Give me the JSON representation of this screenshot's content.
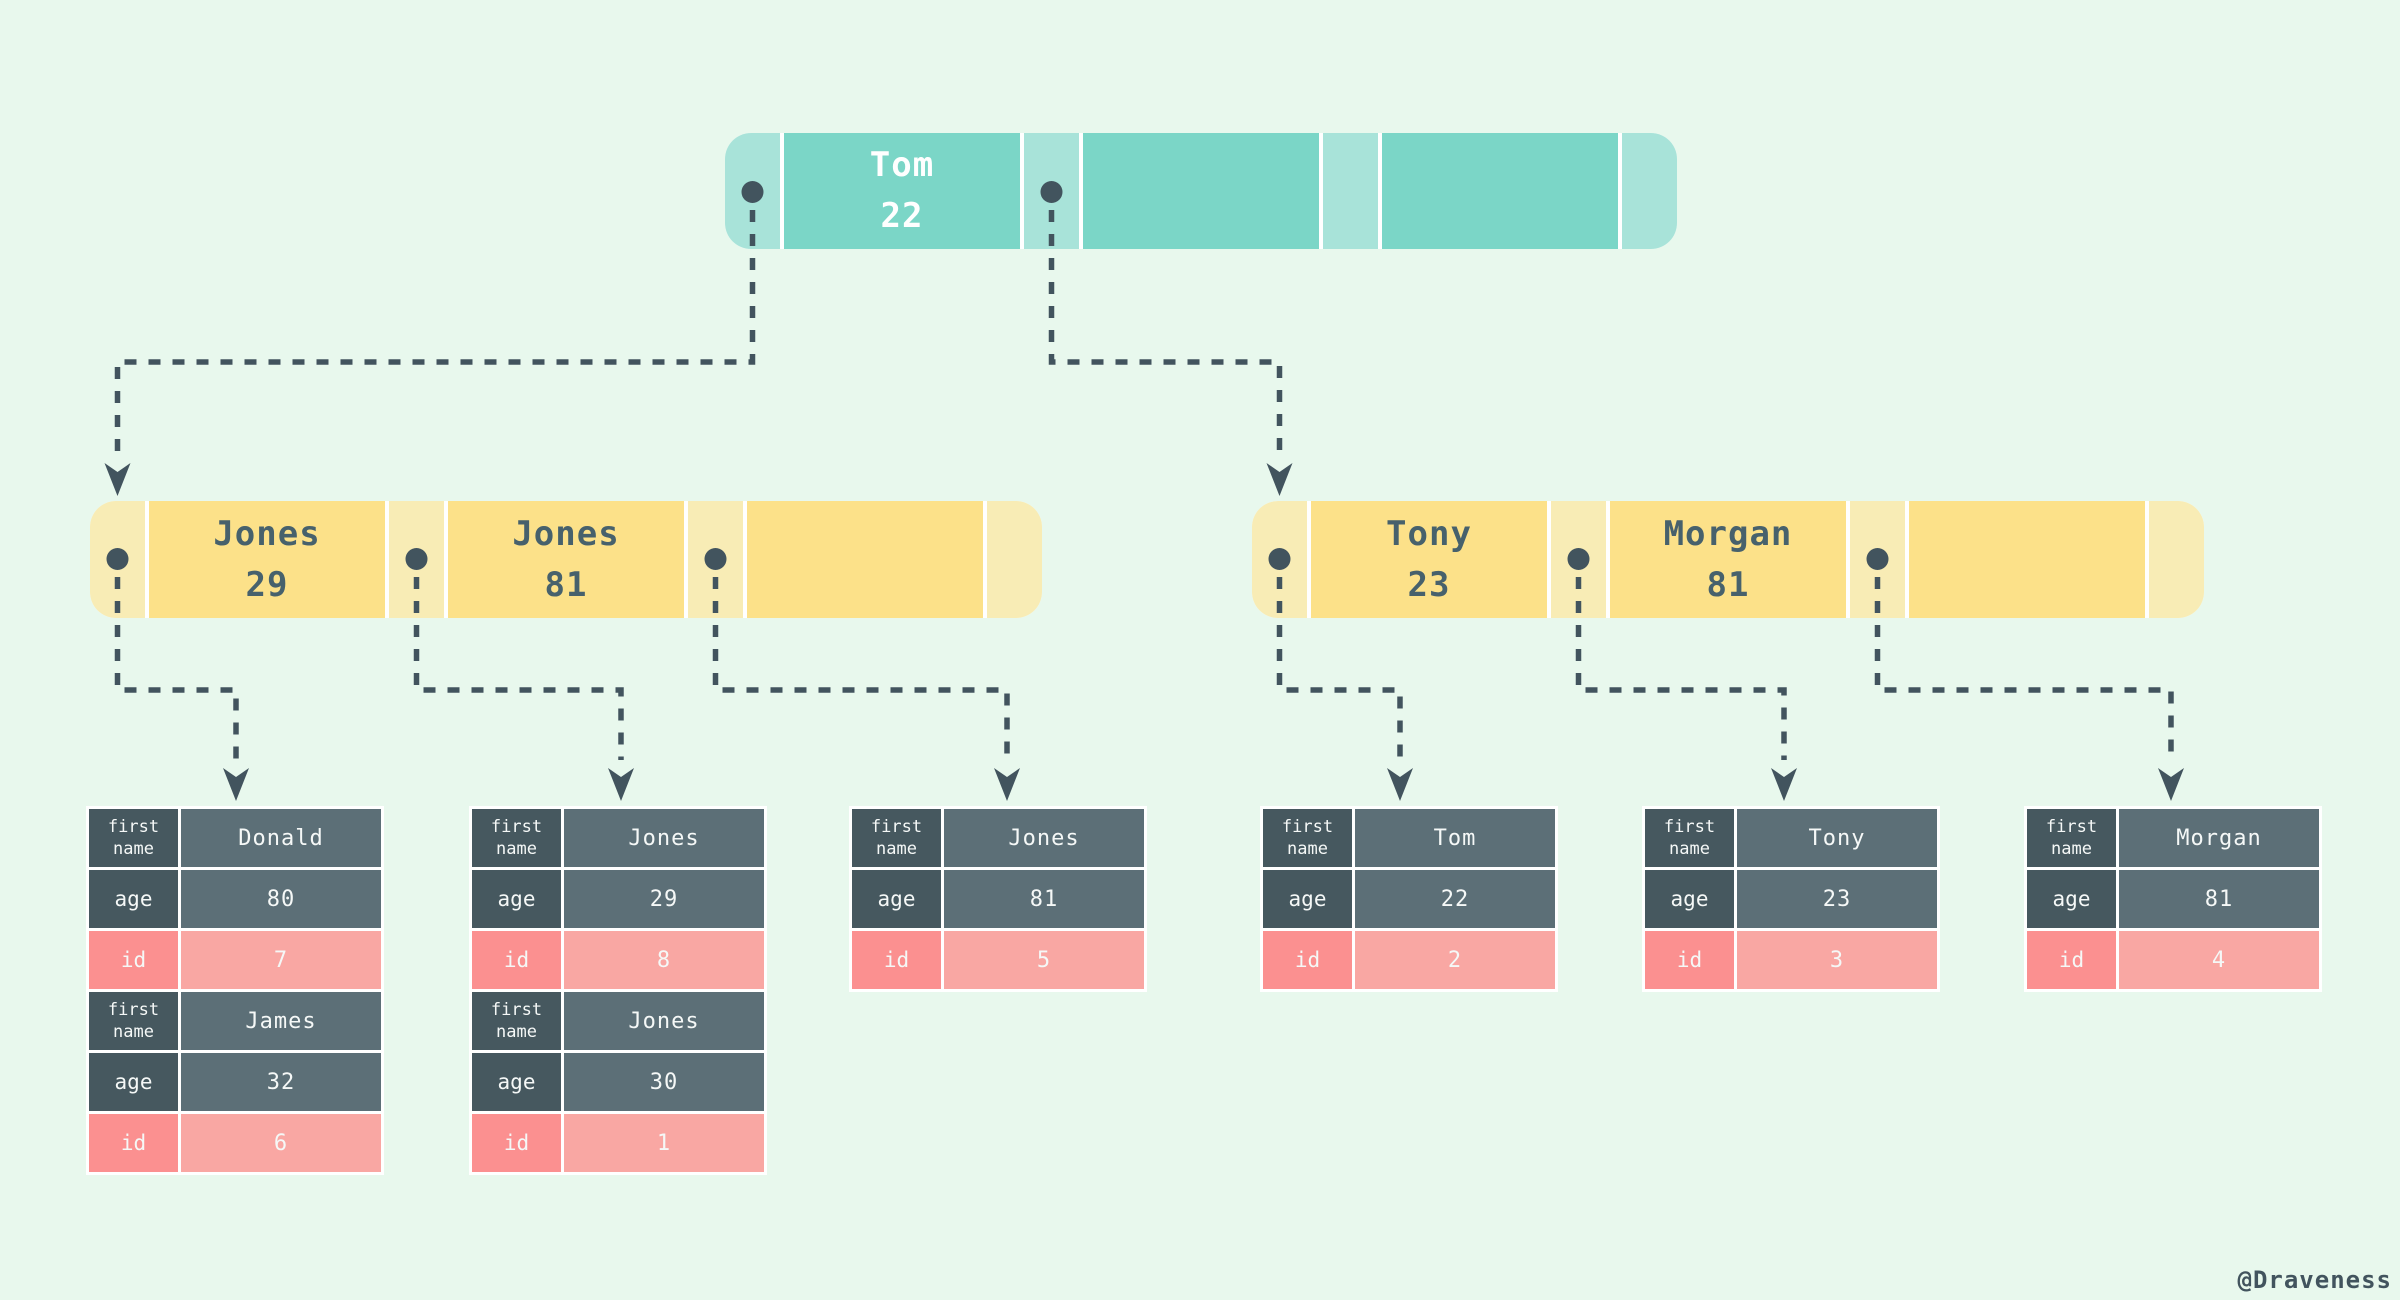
{
  "watermark": "@Draveness",
  "colors": {
    "background": "#e8f8ed",
    "teal_light": "#a8e3d9",
    "teal_dark": "#7bd6c7",
    "yellow_light": "#f8ecb5",
    "yellow_dark": "#fce189",
    "slate": "#42545e",
    "node_text": "#47616c",
    "slate_label": "#46585f",
    "slate_value": "#5c6f77",
    "pink_label": "#fb9090",
    "pink_value": "#f9a7a3",
    "cell_text": "#f5f8f7"
  },
  "index_nodes": [
    {
      "id": "root-node",
      "style": "teal",
      "entries": [
        {
          "name": "Tom",
          "age": "22"
        },
        {
          "name": "",
          "age": ""
        },
        {
          "name": "",
          "age": ""
        }
      ],
      "pointer_dots": [
        0,
        1
      ]
    },
    {
      "id": "internal-node-left",
      "style": "yellow",
      "entries": [
        {
          "name": "Jones",
          "age": "29"
        },
        {
          "name": "Jones",
          "age": "81"
        },
        {
          "name": "",
          "age": ""
        }
      ],
      "pointer_dots": [
        0,
        1,
        2
      ]
    },
    {
      "id": "internal-node-right",
      "style": "yellow",
      "entries": [
        {
          "name": "Tony",
          "age": "23"
        },
        {
          "name": "Morgan",
          "age": "81"
        },
        {
          "name": "",
          "age": ""
        }
      ],
      "pointer_dots": [
        0,
        1,
        2
      ]
    }
  ],
  "field_labels": {
    "first_name": [
      "first",
      "name"
    ],
    "age": "age",
    "id": "id"
  },
  "leaf_tables": [
    {
      "records": [
        {
          "first_name": "Donald",
          "age": "80",
          "id": "7"
        },
        {
          "first_name": "James",
          "age": "32",
          "id": "6"
        }
      ]
    },
    {
      "records": [
        {
          "first_name": "Jones",
          "age": "29",
          "id": "8"
        },
        {
          "first_name": "Jones",
          "age": "30",
          "id": "1"
        }
      ]
    },
    {
      "records": [
        {
          "first_name": "Jones",
          "age": "81",
          "id": "5"
        }
      ]
    },
    {
      "records": [
        {
          "first_name": "Tom",
          "age": "22",
          "id": "2"
        }
      ]
    },
    {
      "records": [
        {
          "first_name": "Tony",
          "age": "23",
          "id": "3"
        }
      ]
    },
    {
      "records": [
        {
          "first_name": "Morgan",
          "age": "81",
          "id": "4"
        }
      ]
    }
  ]
}
